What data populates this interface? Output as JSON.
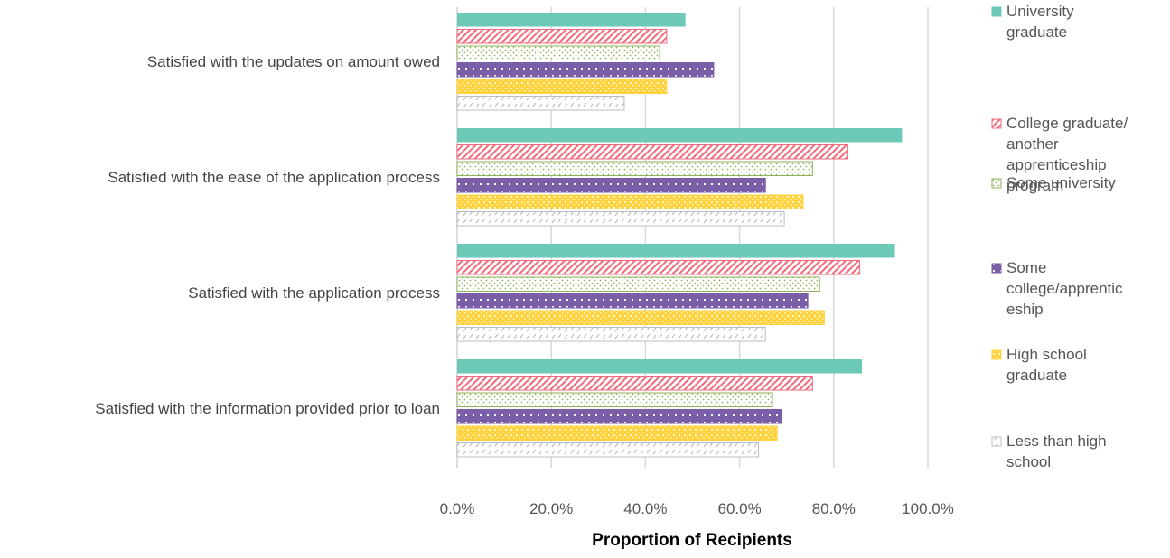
{
  "chart_data": {
    "type": "bar",
    "orientation": "horizontal",
    "title": "",
    "xlabel": "Proportion of Recipients",
    "ylabel": "",
    "xlim": [
      0,
      100
    ],
    "x_ticks": [
      "0.0%",
      "20.0%",
      "40.0%",
      "60.0%",
      "80.0%",
      "100.0%"
    ],
    "grid": true,
    "legend_position": "right",
    "categories": [
      "Satisfied with the updates on amount owed",
      "Satisfied with the ease of the application process",
      "Satisfied with the application process",
      "Satisfied with the information provided prior to loan"
    ],
    "series": [
      {
        "name": "University graduate",
        "legend_lines": [
          "University",
          "graduate"
        ],
        "pattern": "solid",
        "color": "#6cc9b8",
        "values": [
          48.5,
          94.5,
          93.0,
          86.0
        ]
      },
      {
        "name": "College graduate/ another apprenticeship program",
        "legend_lines": [
          "College graduate/",
          "another",
          "apprenticeship",
          "program"
        ],
        "pattern": "diagonal",
        "color": "#f06b7c",
        "values": [
          44.5,
          83.0,
          85.5,
          75.5
        ]
      },
      {
        "name": "Some university",
        "legend_lines": [
          "Some university"
        ],
        "pattern": "dotted",
        "color": "#8fb35a",
        "values": [
          43.0,
          75.5,
          77.0,
          67.0
        ]
      },
      {
        "name": "Some college/apprenticeship",
        "legend_lines": [
          "Some",
          "college/apprentic",
          "eship"
        ],
        "pattern": "dots",
        "color": "#7b5ea8",
        "values": [
          54.5,
          65.5,
          74.5,
          69.0
        ]
      },
      {
        "name": "High school graduate",
        "legend_lines": [
          "High school",
          "graduate"
        ],
        "pattern": "checker",
        "color": "#ffd23f",
        "values": [
          44.5,
          73.5,
          78.0,
          68.0
        ]
      },
      {
        "name": "Less than high school",
        "legend_lines": [
          "Less than high",
          "school"
        ],
        "pattern": "sparse",
        "color": "#bdbdbd",
        "values": [
          35.5,
          69.5,
          65.5,
          64.0
        ]
      }
    ]
  }
}
